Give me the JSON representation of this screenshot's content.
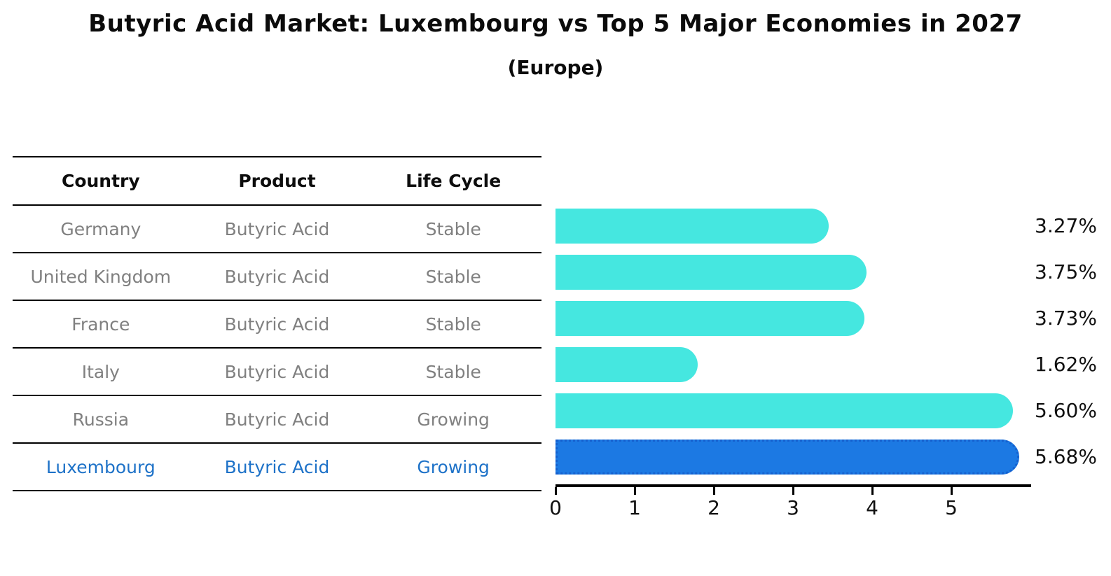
{
  "title": "Butyric Acid Market: Luxembourg vs Top 5 Major Economies in 2027",
  "subtitle": "(Europe)",
  "table": {
    "headers": [
      "Country",
      "Product",
      "Life Cycle"
    ],
    "rows": [
      {
        "country": "Germany",
        "product": "Butyric Acid",
        "life_cycle": "Stable"
      },
      {
        "country": "United Kingdom",
        "product": "Butyric Acid",
        "life_cycle": "Stable"
      },
      {
        "country": "France",
        "product": "Butyric Acid",
        "life_cycle": "Stable"
      },
      {
        "country": "Italy",
        "product": "Butyric Acid",
        "life_cycle": "Stable"
      },
      {
        "country": "Russia",
        "product": "Butyric Acid",
        "life_cycle": "Growing"
      },
      {
        "country": "Luxembourg",
        "product": "Butyric Acid",
        "life_cycle": "Growing"
      }
    ],
    "highlight_row_index": 5
  },
  "chart_data": {
    "type": "bar",
    "orientation": "horizontal",
    "title": "Butyric Acid Market: Luxembourg vs Top 5 Major Economies in 2027",
    "subtitle": "(Europe)",
    "categories": [
      "Germany",
      "United Kingdom",
      "France",
      "Italy",
      "Russia",
      "Luxembourg"
    ],
    "values": [
      3.27,
      3.75,
      3.73,
      1.62,
      5.6,
      5.68
    ],
    "value_labels": [
      "3.27%",
      "3.75%",
      "3.73%",
      "1.62%",
      "5.60%",
      "5.68%"
    ],
    "x_ticks": [
      "0",
      "1",
      "2",
      "3",
      "4",
      "5"
    ],
    "xlim": [
      0,
      6
    ],
    "grid": false,
    "legend": null,
    "bar_color": "#45E7E0",
    "highlight_index": 5,
    "highlight_color": "#1C79E3",
    "highlight_border_color": "#1560CE",
    "value_label_color": "#111111",
    "table_text_color": "#808080",
    "highlight_text_color": "#1E72C8"
  }
}
